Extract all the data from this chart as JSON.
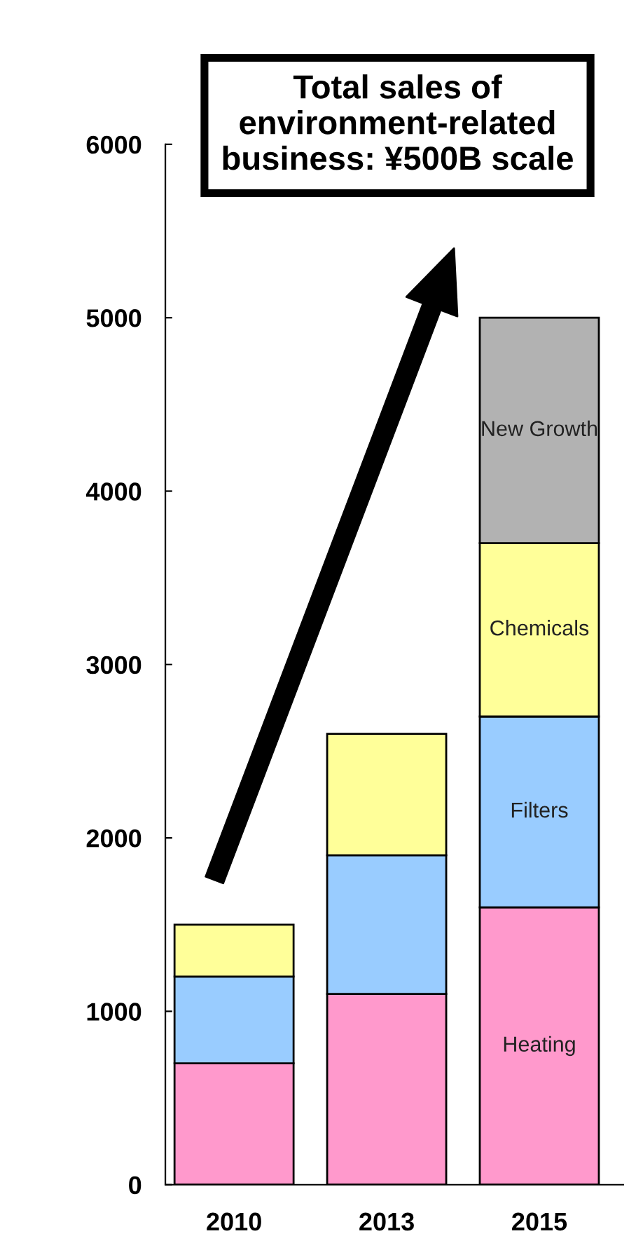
{
  "chart_data": {
    "type": "bar",
    "stacked": true,
    "categories": [
      "2010",
      "2013",
      "2015"
    ],
    "series": [
      {
        "name": "Heating",
        "color": "#ff99cc",
        "values": [
          700,
          1100,
          1600
        ]
      },
      {
        "name": "Filters",
        "color": "#99ccff",
        "values": [
          500,
          800,
          1100
        ]
      },
      {
        "name": "Chemicals",
        "color": "#ffff99",
        "values": [
          300,
          700,
          1000
        ]
      },
      {
        "name": "New Growth",
        "color": "#b2b2b2",
        "values": [
          null,
          null,
          1300
        ]
      }
    ],
    "ylim": [
      0,
      6000
    ],
    "yticks": [
      0,
      1000,
      2000,
      3000,
      4000,
      5000,
      6000
    ],
    "grid": false,
    "legend": false,
    "annotations": [
      "Total sales of environment-related business: ¥500B scale"
    ]
  }
}
